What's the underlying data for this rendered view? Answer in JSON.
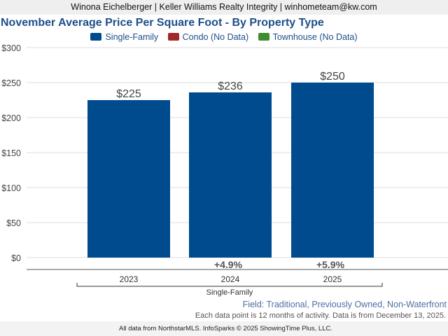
{
  "header": {
    "text": "Winona Eichelberger | Keller Williams Realty Integrity | winhometeam@kw.com"
  },
  "chart_data": {
    "type": "bar",
    "title": "November Average Price Per Square Foot - By Property Type",
    "categories": [
      "2023",
      "2024",
      "2025"
    ],
    "series": [
      {
        "name": "Single-Family",
        "color": "#004b8d",
        "values": [
          225,
          236,
          250
        ],
        "data_labels": [
          "$225",
          "$236",
          "$250"
        ],
        "change_labels": [
          "",
          "+4.9%",
          "+5.9%"
        ]
      }
    ],
    "legend": [
      {
        "label": "Single-Family",
        "color": "#004b8d"
      },
      {
        "label": "Condo (No Data)",
        "color": "#a3262a"
      },
      {
        "label": "Townhouse (No Data)",
        "color": "#3e8c2e"
      }
    ],
    "legend_position": "top-center",
    "group_label": "Single-Family",
    "yticks": [
      "$300",
      "$250",
      "$200",
      "$150",
      "$100",
      "$50",
      "$0"
    ],
    "ytick_values": [
      300,
      250,
      200,
      150,
      100,
      50,
      0
    ],
    "ylim": [
      0,
      300
    ],
    "grid": true
  },
  "footer": {
    "field": "Field: Traditional, Previously Owned, Non-Waterfront",
    "note": "Each data point is 12 months of activity. Data is from December 13, 2025.",
    "source": "All data from NorthstarMLS. InfoSparks © 2025 ShowingTime Plus, LLC."
  }
}
